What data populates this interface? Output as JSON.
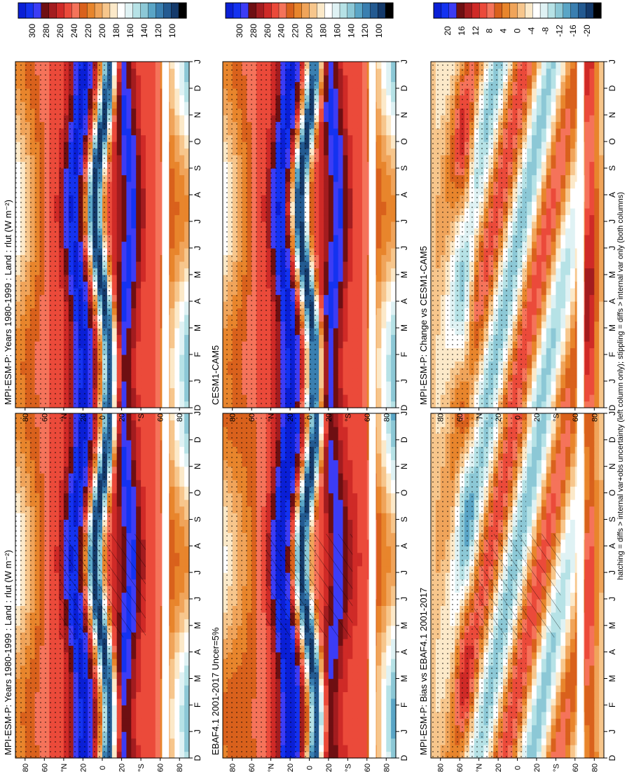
{
  "figure": {
    "footnote": "hatching = diffs > internal var+obs uncertainty (left column only); stippling = diffs > internal var only (both columns)",
    "colors": {
      "abs_scale": [
        "#0a1fd6",
        "#1432f0",
        "#3c3cf5",
        "#6e0f12",
        "#a31c1f",
        "#cf2a27",
        "#eb4a3a",
        "#f5735a",
        "#d9611c",
        "#e8852c",
        "#f0a45a",
        "#f7c68c",
        "#fce9c9",
        "#ffffff",
        "#dff2f4",
        "#b6e2e6",
        "#8cc8d6",
        "#5aa5c6",
        "#3a7fb0",
        "#235a91",
        "#143a6b",
        "#000000"
      ],
      "diff_scale": [
        "#0a1fd6",
        "#1432f0",
        "#3c3cf5",
        "#6e0f12",
        "#a31c1f",
        "#cf2a27",
        "#eb4a3a",
        "#f5735a",
        "#d9611c",
        "#e8852c",
        "#f0a45a",
        "#f7c68c",
        "#fce9c9",
        "#ffffff",
        "#dff2f4",
        "#b6e2e6",
        "#8cc8d6",
        "#5aa5c6",
        "#3a7fb0",
        "#235a91",
        "#143a6b",
        "#000000"
      ]
    }
  },
  "chart_data": [
    {
      "type": "heatmap",
      "title": "MPI-ESM-P: Years 1980-1999 : Land : rlut (W m⁻²)",
      "x_axis": {
        "label": "",
        "ticks": [
          "D",
          "J",
          "F",
          "M",
          "A",
          "M",
          "J",
          "J",
          "A",
          "S",
          "O",
          "N",
          "D",
          "J"
        ]
      },
      "y_axis": {
        "label": "°N / °S",
        "ticks": [
          "80",
          "60",
          "°N",
          "20",
          "0",
          "20",
          "°S",
          "60",
          "80"
        ],
        "range": [
          -90,
          90
        ]
      },
      "colorbar": {
        "ticks": [
          "300",
          "280",
          "260",
          "240",
          "220",
          "200",
          "180",
          "160",
          "140",
          "120",
          "100"
        ],
        "range": [
          100,
          310
        ]
      },
      "hatching": true,
      "stippling": true
    },
    {
      "type": "heatmap",
      "title": "MPI-ESM-P: Years 1980-1999 : Land : rlut (W m⁻²)",
      "x_axis": {
        "label": "",
        "ticks": [
          "D",
          "J",
          "F",
          "M",
          "A",
          "M",
          "J",
          "J",
          "A",
          "S",
          "O",
          "N",
          "D",
          "J"
        ]
      },
      "y_axis": {
        "label": "°N / °S",
        "ticks": [
          "80",
          "60",
          "°N",
          "20",
          "0",
          "20",
          "°S",
          "60",
          "80"
        ],
        "range": [
          -90,
          90
        ]
      },
      "colorbar": {
        "ticks": [
          "300",
          "280",
          "260",
          "240",
          "220",
          "200",
          "180",
          "160",
          "140",
          "120",
          "100"
        ],
        "range": [
          100,
          310
        ]
      },
      "hatching": false,
      "stippling": true
    },
    {
      "type": "heatmap",
      "title": "EBAF4.1 2001-2017 Uncer=5%",
      "x_axis": {
        "label": "",
        "ticks": [
          "D",
          "J",
          "F",
          "M",
          "A",
          "M",
          "J",
          "J",
          "A",
          "S",
          "O",
          "N",
          "D",
          "J"
        ]
      },
      "y_axis": {
        "label": "°N / °S",
        "ticks": [
          "80",
          "60",
          "°N",
          "20",
          "0",
          "20",
          "°S",
          "60",
          "80"
        ],
        "range": [
          -90,
          90
        ]
      },
      "colorbar": {
        "ticks": [
          "300",
          "280",
          "260",
          "240",
          "220",
          "200",
          "180",
          "160",
          "140",
          "120",
          "100"
        ],
        "range": [
          100,
          310
        ]
      },
      "hatching": true,
      "stippling": true
    },
    {
      "type": "heatmap",
      "title": "CESM1-CAM5",
      "x_axis": {
        "label": "",
        "ticks": [
          "D",
          "J",
          "F",
          "M",
          "A",
          "M",
          "J",
          "J",
          "A",
          "S",
          "O",
          "N",
          "D",
          "J"
        ]
      },
      "y_axis": {
        "label": "°N / °S",
        "ticks": [
          "80",
          "60",
          "°N",
          "20",
          "0",
          "20",
          "°S",
          "60",
          "80"
        ],
        "range": [
          -90,
          90
        ]
      },
      "colorbar": {
        "ticks": [
          "300",
          "280",
          "260",
          "240",
          "220",
          "200",
          "180",
          "160",
          "140",
          "120",
          "100"
        ],
        "range": [
          100,
          310
        ]
      },
      "hatching": false,
      "stippling": true
    },
    {
      "type": "heatmap",
      "title": "MPI-ESM-P: Bias vs EBAF4.1 2001-2017",
      "x_axis": {
        "label": "",
        "ticks": [
          "D",
          "J",
          "F",
          "M",
          "A",
          "M",
          "J",
          "J",
          "A",
          "S",
          "O",
          "N",
          "D",
          "J"
        ]
      },
      "y_axis": {
        "label": "°N / °S",
        "ticks": [
          "80",
          "60",
          "°N",
          "20",
          "0",
          "20",
          "°S",
          "60",
          "80"
        ],
        "range": [
          -90,
          90
        ]
      },
      "colorbar": {
        "ticks": [
          "20",
          "16",
          "12",
          "8",
          "4",
          "0",
          "-4",
          "-8",
          "-12",
          "-16",
          "-20"
        ],
        "range": [
          -22,
          22
        ]
      },
      "hatching": true,
      "stippling": true
    },
    {
      "type": "heatmap",
      "title": "MPI-ESM-P: Change vs CESM1-CAM5",
      "x_axis": {
        "label": "",
        "ticks": [
          "D",
          "J",
          "F",
          "M",
          "A",
          "M",
          "J",
          "J",
          "A",
          "S",
          "O",
          "N",
          "D",
          "J"
        ]
      },
      "y_axis": {
        "label": "°N / °S",
        "ticks": [
          "80",
          "60",
          "°N",
          "20",
          "0",
          "20",
          "°S",
          "60",
          "80"
        ],
        "range": [
          -90,
          90
        ]
      },
      "colorbar": {
        "ticks": [
          "20",
          "16",
          "12",
          "8",
          "4",
          "0",
          "-4",
          "-8",
          "-12",
          "-16",
          "-20"
        ],
        "range": [
          -22,
          22
        ]
      },
      "hatching": false,
      "stippling": true
    }
  ]
}
